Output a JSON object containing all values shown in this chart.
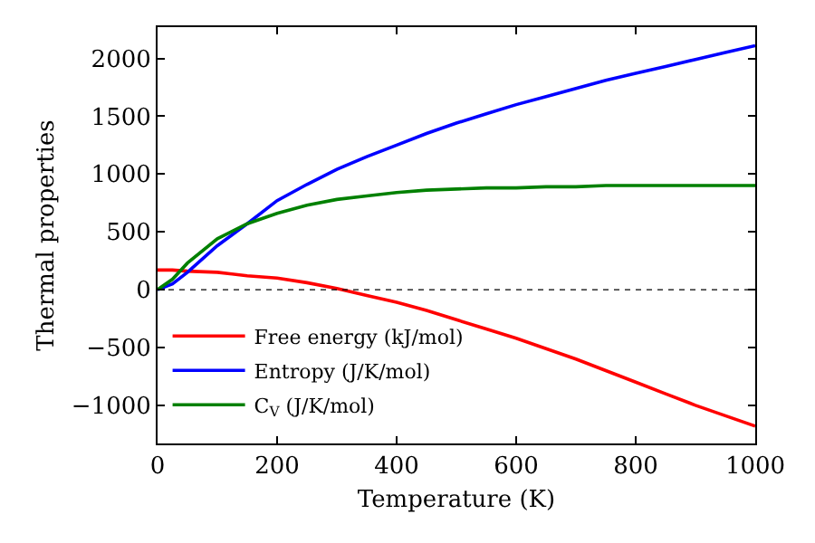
{
  "chart_data": {
    "type": "line",
    "xlabel": "Temperature (K)",
    "ylabel": "Thermal properties",
    "x": [
      0,
      25,
      50,
      100,
      150,
      200,
      250,
      300,
      350,
      400,
      450,
      500,
      550,
      600,
      650,
      700,
      750,
      800,
      850,
      900,
      950,
      1000
    ],
    "series": [
      {
        "name": "Free energy (kJ/mol)",
        "color": "#ff0000",
        "values": [
          170,
          170,
          160,
          150,
          120,
          100,
          60,
          10,
          -50,
          -110,
          -180,
          -260,
          -340,
          -420,
          -510,
          -600,
          -700,
          -800,
          -900,
          -1000,
          -1090,
          -1180
        ]
      },
      {
        "name": "Entropy (J/K/mol)",
        "color": "#0000ff",
        "values": [
          0,
          50,
          150,
          380,
          570,
          770,
          910,
          1040,
          1150,
          1250,
          1350,
          1440,
          1520,
          1600,
          1670,
          1740,
          1810,
          1870,
          1930,
          1990,
          2050,
          2110
        ]
      },
      {
        "name": "C$_{V}$ (J/K/mol)",
        "color": "#008000",
        "values": [
          0,
          90,
          230,
          440,
          570,
          660,
          730,
          780,
          810,
          840,
          860,
          870,
          880,
          880,
          890,
          890,
          900,
          900,
          900,
          900,
          900,
          900
        ]
      }
    ],
    "xlim": [
      0,
      1000
    ],
    "xticks": [
      0,
      200,
      400,
      600,
      800,
      1000
    ],
    "ylim": [
      -1330,
      2270
    ],
    "yticks": [
      {
        "value": -1000,
        "label": "−1000"
      },
      {
        "value": -500,
        "label": "−500"
      },
      0,
      500,
      1000,
      1500,
      2000
    ],
    "ref_lines": [
      {
        "axis": "y",
        "value": 0,
        "label": null,
        "color": "#000000",
        "line_style": "dotted"
      }
    ],
    "grid": false,
    "legend": "bottom left",
    "marker": "none",
    "line_style": "solid"
  }
}
